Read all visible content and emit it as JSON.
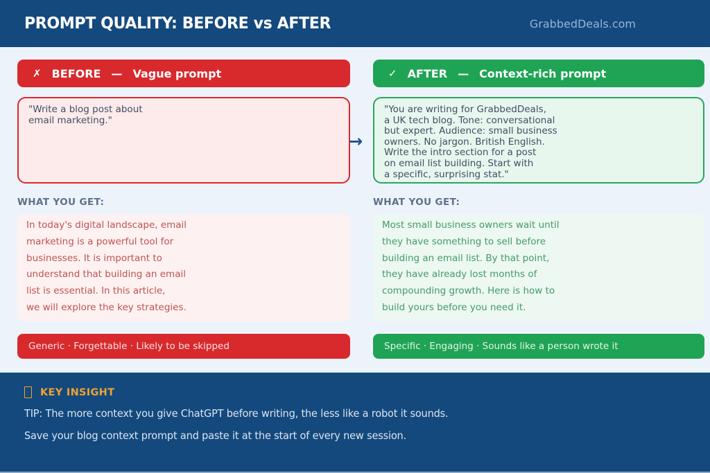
{
  "colors": {
    "navy": "#14497d",
    "red": "#d8292d",
    "green": "#1fa455",
    "orange": "#f0a231",
    "light_background": "#edf3fb",
    "arrow_blue": "#1b5390"
  },
  "header": {
    "title": "PROMPT QUALITY: BEFORE vs AFTER",
    "brand": "GrabbedDeals.com"
  },
  "arrow_glyph": "→",
  "what_you_get_label": "WHAT YOU GET:",
  "before": {
    "mark": "✗",
    "name": "BEFORE",
    "dash": "—",
    "subtitle": "Vague prompt",
    "prompt": "\"Write a blog post about\nemail marketing.\"",
    "result": "In today's digital landscape, email\nmarketing is a powerful tool for\nbusinesses. It is important to\nunderstand that building an email\nlist is essential. In this article,\nwe will explore the key strategies.",
    "verdict": "Generic · Forgettable · Likely to be skipped"
  },
  "after": {
    "mark": "✓",
    "name": "AFTER",
    "dash": "—",
    "subtitle": "Context-rich prompt",
    "prompt": "\"You are writing for GrabbedDeals,\na UK tech blog. Tone: conversational\nbut expert. Audience: small business\nowners. No jargon. British English.\nWrite the intro section for a post\non email list building. Start with\na specific, surprising stat.\"",
    "result": "Most small business owners wait until\nthey have something to sell before\nbuilding an email list. By that point,\nthey have already lost months of\ncompounding growth. Here is how to\nbuild yours before you need it.",
    "verdict": "Specific · Engaging · Sounds like a person wrote it"
  },
  "footer": {
    "key_insight": "KEY INSIGHT",
    "tip_line_1": "TIP: The more context you give ChatGPT before writing, the less like a robot it sounds.",
    "tip_line_2": "Save your blog context prompt and paste it at the start of every new session."
  }
}
